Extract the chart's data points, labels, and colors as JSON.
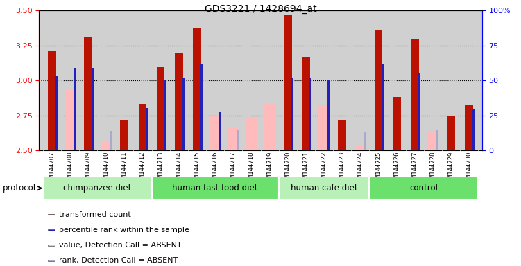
{
  "title": "GDS3221 / 1428694_at",
  "samples": [
    "GSM144707",
    "GSM144708",
    "GSM144709",
    "GSM144710",
    "GSM144711",
    "GSM144712",
    "GSM144713",
    "GSM144714",
    "GSM144715",
    "GSM144716",
    "GSM144717",
    "GSM144718",
    "GSM144719",
    "GSM144720",
    "GSM144721",
    "GSM144722",
    "GSM144723",
    "GSM144724",
    "GSM144725",
    "GSM144726",
    "GSM144727",
    "GSM144728",
    "GSM144729",
    "GSM144730"
  ],
  "transformed_count": [
    3.21,
    null,
    3.31,
    null,
    2.72,
    2.83,
    3.1,
    3.2,
    3.38,
    null,
    null,
    null,
    null,
    3.47,
    3.17,
    null,
    2.72,
    null,
    3.36,
    2.88,
    3.3,
    null,
    2.75,
    2.82
  ],
  "absent_value": [
    null,
    2.93,
    null,
    2.56,
    null,
    null,
    null,
    null,
    null,
    2.75,
    2.67,
    2.73,
    2.84,
    null,
    null,
    2.82,
    null,
    2.54,
    null,
    null,
    null,
    2.64,
    null,
    null
  ],
  "percentile_rank": [
    3.03,
    3.09,
    3.09,
    null,
    null,
    2.8,
    3.0,
    3.02,
    3.12,
    2.78,
    null,
    null,
    null,
    3.02,
    3.02,
    3.0,
    null,
    null,
    3.12,
    null,
    3.05,
    null,
    null,
    2.79
  ],
  "absent_rank": [
    null,
    null,
    null,
    2.64,
    null,
    null,
    null,
    null,
    null,
    null,
    2.65,
    null,
    null,
    null,
    null,
    null,
    null,
    2.63,
    null,
    null,
    null,
    2.65,
    null,
    null
  ],
  "groups": [
    {
      "name": "chimpanzee diet",
      "start": 0,
      "end": 5
    },
    {
      "name": "human fast food diet",
      "start": 6,
      "end": 12
    },
    {
      "name": "human cafe diet",
      "start": 13,
      "end": 17
    },
    {
      "name": "control",
      "start": 18,
      "end": 23
    }
  ],
  "group_colors": [
    "#b8f0b8",
    "#6ce06c",
    "#b8f0b8",
    "#6ce06c"
  ],
  "ylim_left": [
    2.5,
    3.5
  ],
  "ylim_right": [
    0,
    100
  ],
  "yticks_left": [
    2.5,
    2.75,
    3.0,
    3.25,
    3.5
  ],
  "yticks_right": [
    0,
    25,
    50,
    75,
    100
  ],
  "hlines": [
    2.75,
    3.0,
    3.25
  ],
  "bar_color_red": "#bb1100",
  "bar_color_pink": "#ffbbbb",
  "bar_color_blue": "#2222bb",
  "bar_color_lightblue": "#aaaacc",
  "background_color": "#d0d0d0",
  "bar_width": 0.45,
  "thin_bar_width": 0.12
}
